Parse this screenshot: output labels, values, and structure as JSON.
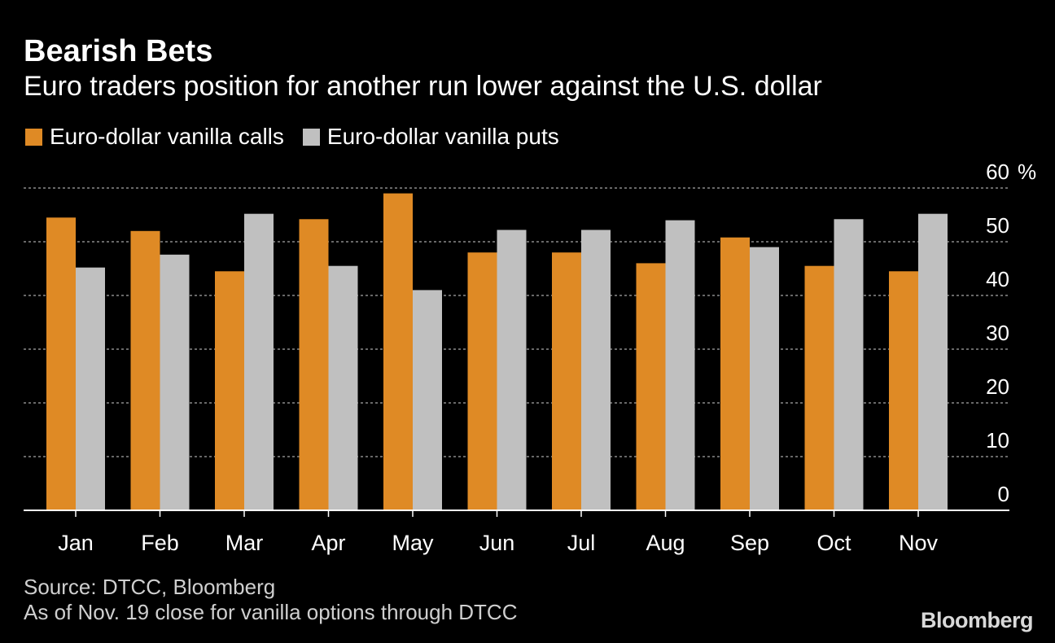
{
  "title": "Bearish Bets",
  "subtitle": "Euro traders position for another run lower against the U.S. dollar",
  "legend": {
    "calls": "Euro-dollar vanilla calls",
    "puts": "Euro-dollar vanilla puts"
  },
  "colors": {
    "calls": "#df8a25",
    "puts": "#c0c0c0",
    "background": "#000000",
    "grid": "#8a8a8a",
    "axis": "#ffffff"
  },
  "source": {
    "line1": "Source: DTCC, Bloomberg",
    "line2": "As of Nov. 19 close for vanilla options through DTCC"
  },
  "brand": "Bloomberg",
  "chart_data": {
    "type": "bar",
    "categories": [
      "Jan",
      "Feb",
      "Mar",
      "Apr",
      "May",
      "Jun",
      "Jul",
      "Aug",
      "Sep",
      "Oct",
      "Nov"
    ],
    "series": [
      {
        "name": "Euro-dollar vanilla calls",
        "values": [
          54.5,
          52.0,
          44.5,
          54.2,
          59.0,
          48.0,
          48.0,
          46.0,
          50.8,
          45.5,
          44.5
        ]
      },
      {
        "name": "Euro-dollar vanilla puts",
        "values": [
          45.2,
          47.6,
          55.2,
          45.5,
          41.0,
          52.2,
          52.2,
          54.0,
          49.0,
          54.2,
          55.2
        ]
      }
    ],
    "ylim": [
      0,
      60
    ],
    "yticks": [
      0,
      10,
      20,
      30,
      40,
      50,
      60
    ],
    "y_unit": "%",
    "y_axis_side": "right",
    "grid": true,
    "legend_position": "top-left"
  }
}
